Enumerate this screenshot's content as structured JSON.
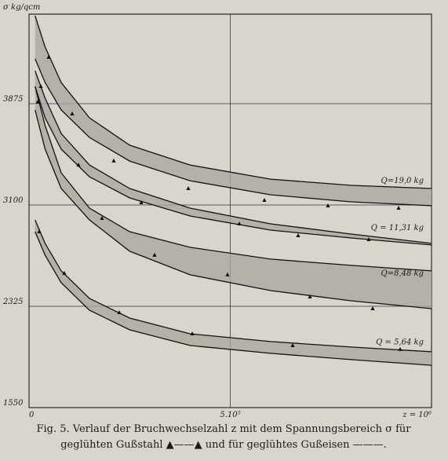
{
  "chart_data": {
    "type": "band",
    "y_label": "σ kg/qcm",
    "xlim": [
      0,
      1000000
    ],
    "ylim": [
      1550,
      4560
    ],
    "xticks": [
      {
        "value": 0,
        "label": "0"
      },
      {
        "value": 500000,
        "label": "5.10⁵"
      },
      {
        "value": 1000000,
        "label": "z = 10⁶"
      }
    ],
    "yticks": [
      1550,
      2325,
      3100,
      3875
    ],
    "grid": true,
    "x": [
      15000,
      40000,
      80000,
      150000,
      250000,
      400000,
      600000,
      800000,
      1000000
    ],
    "series": [
      {
        "name": "Q=19,0 kg",
        "color": "#aaa79f",
        "upper": [
          4548,
          4308,
          4037,
          3767,
          3557,
          3406,
          3298,
          3250,
          3226
        ],
        "lower": [
          4218,
          4037,
          3827,
          3617,
          3436,
          3286,
          3178,
          3124,
          3094
        ],
        "markers_x": [
          48700,
          107200,
          210500,
          395700,
          584800,
          742700,
          918100
        ],
        "markers_y": [
          4230,
          3797,
          3437,
          3226,
          3136,
          3094,
          3076
        ]
      },
      {
        "name": "Q = 11,31 kg",
        "color": "#aaa79f",
        "upper": [
          4127,
          3917,
          3647,
          3406,
          3226,
          3076,
          2956,
          2878,
          2806
        ],
        "lower": [
          4007,
          3767,
          3527,
          3316,
          3154,
          3016,
          2908,
          2848,
          2794
        ],
        "markers_x": [
          29200,
          122800,
          278800,
          522400,
          668600,
          844000
        ],
        "markers_y": [
          4007,
          3406,
          3118,
          2956,
          2866,
          2836
        ]
      },
      {
        "name": "Q=8,48 kg",
        "color": "#aaa79f",
        "upper": [
          4007,
          3707,
          3346,
          3076,
          2896,
          2776,
          2686,
          2638,
          2596
        ],
        "lower": [
          3827,
          3527,
          3226,
          2986,
          2746,
          2566,
          2445,
          2367,
          2307
        ],
        "markers_x": [
          21400,
          181300,
          311900,
          493200,
          697900,
          853800
        ],
        "markers_y": [
          3887,
          2998,
          2716,
          2566,
          2397,
          2307
        ]
      },
      {
        "name": "Q = 5,64 kg",
        "color": "#aaa79f",
        "upper": [
          2986,
          2806,
          2596,
          2385,
          2235,
          2115,
          2055,
          2013,
          1977
        ],
        "lower": [
          2896,
          2716,
          2505,
          2295,
          2145,
          2025,
          1965,
          1917,
          1874
        ],
        "markers_x": [
          25300,
          87700,
          224200,
          405500,
          655000,
          922000
        ],
        "markers_y": [
          2896,
          2577,
          2277,
          2115,
          2025,
          1995
        ]
      }
    ],
    "caption": [
      "Fig. 5. Verlauf der Bruchwechselzahl z mit dem Spannungsbereich σ für",
      "geglühten Gußstahl ▲——▲ und für geglühtes Gußeisen ———."
    ]
  }
}
